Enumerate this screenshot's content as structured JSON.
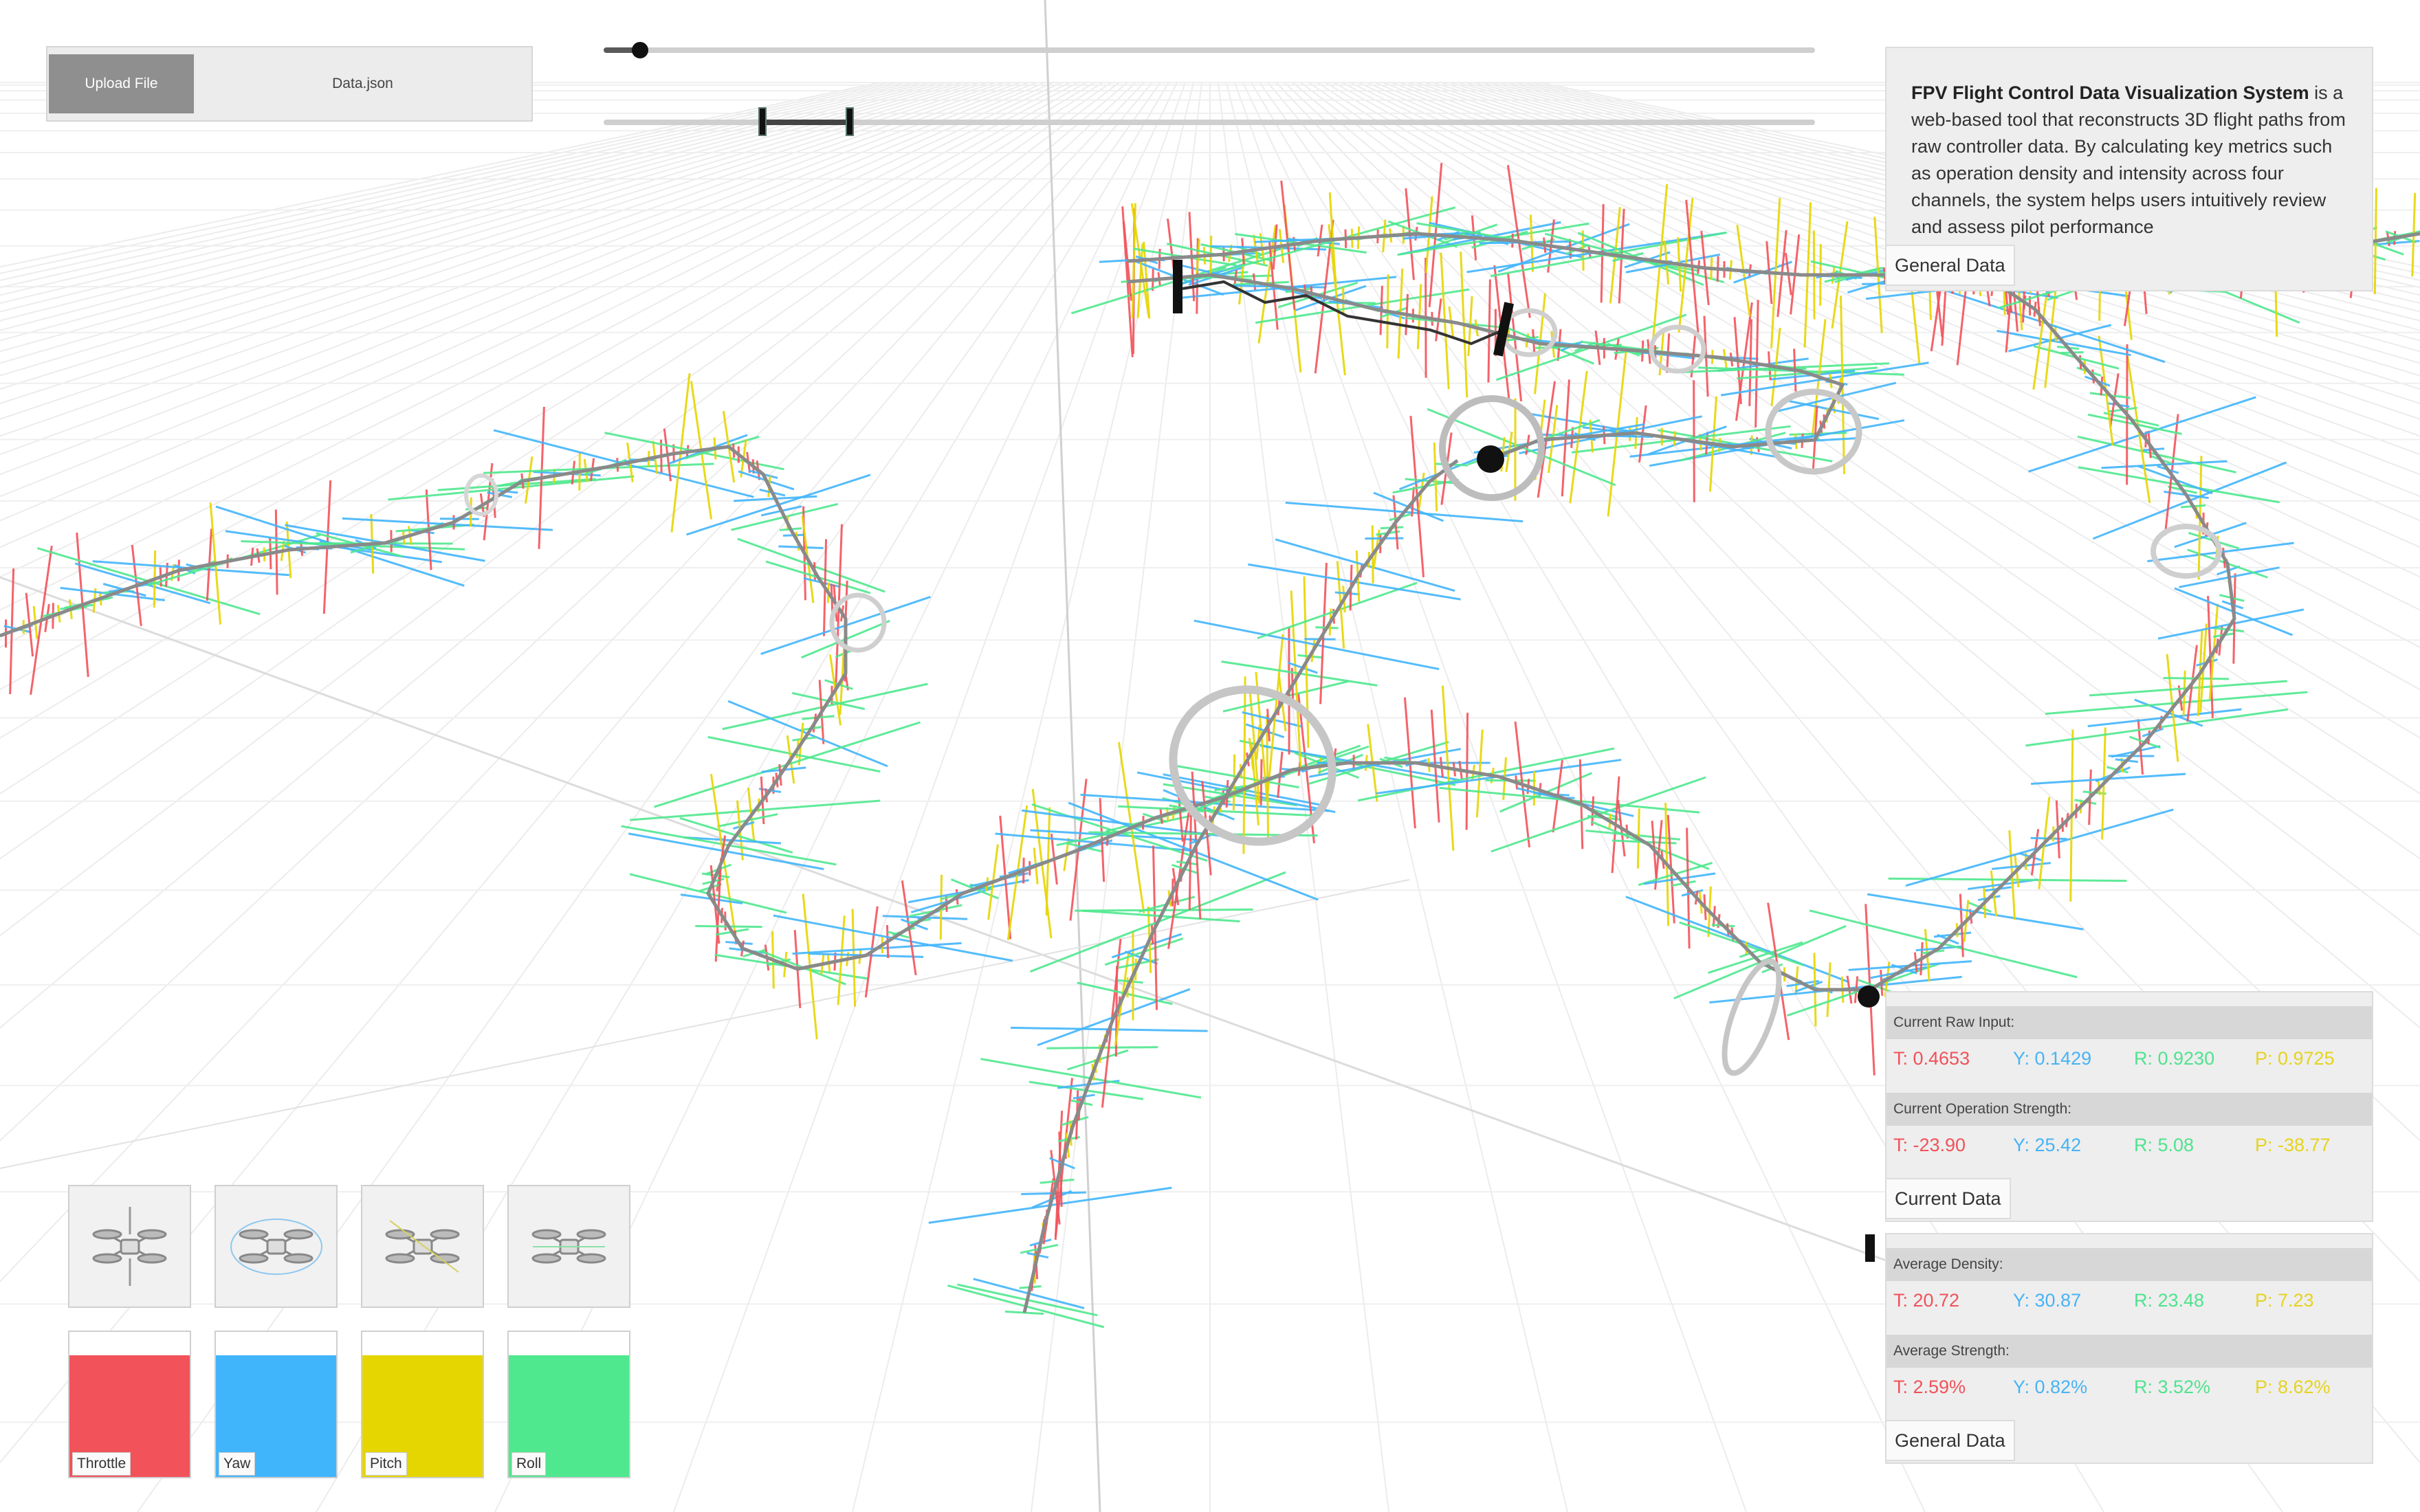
{
  "upload": {
    "button_label": "Upload File",
    "file_name": "Data.json"
  },
  "timeline": {
    "playback_position": 0.03,
    "range_start": 0.131,
    "range_end": 0.203
  },
  "description": {
    "title": "FPV Flight Control Data Visualization System",
    "body": " is a web-based tool that reconstructs 3D flight paths from raw controller data. By calculating key metrics such as operation density and intensity across four channels, the system helps users intuitively review and assess pilot performance",
    "tag": "General Data"
  },
  "current": {
    "raw_header": "Current Raw Input:",
    "raw": {
      "t": "T: 0.4653",
      "y": "Y: 0.1429",
      "r": "R: 0.9230",
      "p": "P: 0.9725"
    },
    "strength_header": "Current Operation Strength:",
    "strength": {
      "t": "T: -23.90",
      "y": "Y: 25.42",
      "r": "R: 5.08",
      "p": "P: -38.77"
    },
    "tag": "Current Data"
  },
  "general": {
    "density_header": "Average Density:",
    "density": {
      "t": "T: 20.72",
      "y": "Y: 30.87",
      "r": "R: 23.48",
      "p": "P: 7.23"
    },
    "strength_header": "Average Strength:",
    "strength": {
      "t": "T: 2.59%",
      "y": "Y: 0.82%",
      "r": "R: 3.52%",
      "p": "P: 8.62%"
    },
    "tag": "General Data"
  },
  "legend": [
    {
      "label": "Throttle",
      "color": "#f2525a"
    },
    {
      "label": "Yaw",
      "color": "#41b5fb"
    },
    {
      "label": "Pitch",
      "color": "#e5d500"
    },
    {
      "label": "Roll",
      "color": "#4fe88e"
    }
  ],
  "drone_icons": [
    "drone-throttle-icon",
    "drone-yaw-icon",
    "drone-pitch-icon",
    "drone-roll-icon"
  ]
}
